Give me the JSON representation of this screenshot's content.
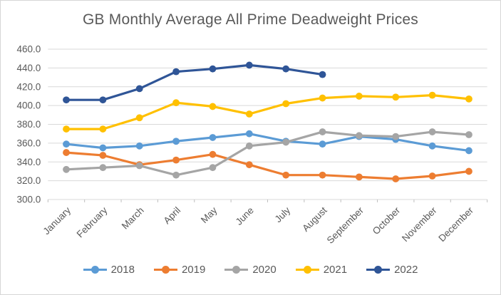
{
  "chart_data": {
    "type": "line",
    "title": "GB Monthly Average All Prime Deadweight Prices",
    "categories": [
      "January",
      "February",
      "March",
      "April",
      "May",
      "June",
      "July",
      "August",
      "September",
      "October",
      "November",
      "December"
    ],
    "series": [
      {
        "name": "2018",
        "color": "#5B9BD5",
        "values": [
          359,
          355,
          357,
          362,
          366,
          370,
          362,
          359,
          367,
          364,
          357,
          352
        ]
      },
      {
        "name": "2019",
        "color": "#ED7D31",
        "values": [
          350,
          347,
          337,
          342,
          348,
          337,
          326,
          326,
          324,
          322,
          325,
          330
        ]
      },
      {
        "name": "2020",
        "color": "#A5A5A5",
        "values": [
          332,
          334,
          336,
          326,
          334,
          357,
          361,
          372,
          368,
          367,
          372,
          369
        ]
      },
      {
        "name": "2021",
        "color": "#FFC000",
        "values": [
          375,
          375,
          387,
          403,
          399,
          391,
          402,
          408,
          410,
          409,
          411,
          407
        ]
      },
      {
        "name": "2022",
        "color": "#2F5597",
        "values": [
          406,
          406,
          418,
          436,
          439,
          443,
          439,
          433,
          null,
          null,
          null,
          null
        ]
      }
    ],
    "y_axis": {
      "min": 300,
      "max": 460,
      "step": 20,
      "ticks": [
        "460.0",
        "440.0",
        "420.0",
        "400.0",
        "380.0",
        "360.0",
        "340.0",
        "320.0",
        "300.0"
      ]
    },
    "x_axis": {
      "label_rotation_deg": -45
    },
    "legend_position": "bottom",
    "grid": true,
    "styles": {
      "grid_color": "#D9D9D9",
      "tick_color": "#BFBFBF",
      "text_color": "#595959",
      "background": "#FFFFFF"
    }
  }
}
